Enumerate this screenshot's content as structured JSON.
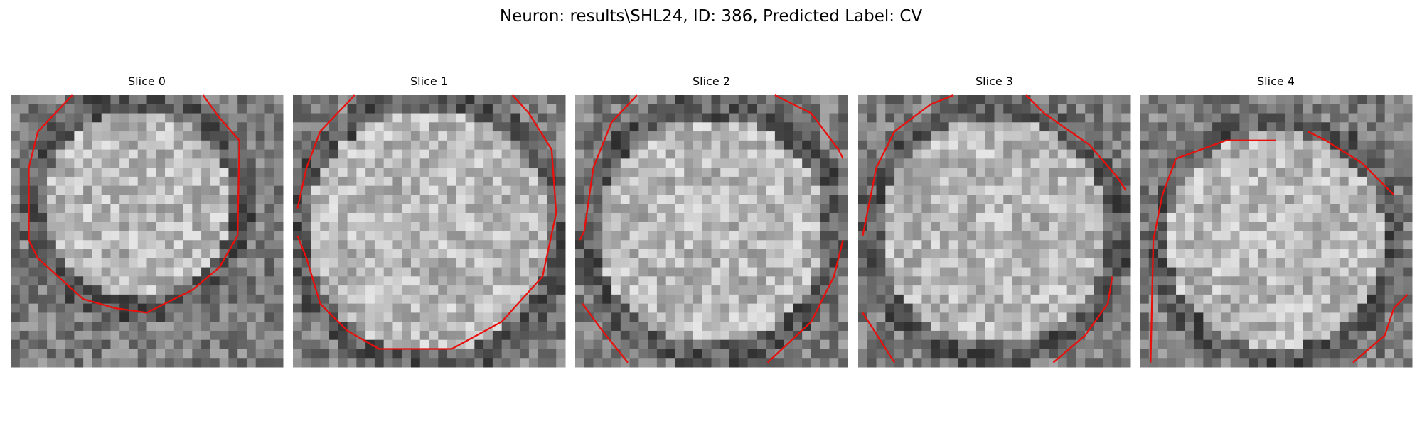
{
  "header": {
    "title": "Neuron: results\\SHL24, ID: 386, Predicted Label: CV"
  },
  "panels": [
    {
      "title": "Slice 0"
    },
    {
      "title": "Slice 1"
    },
    {
      "title": "Slice 2"
    },
    {
      "title": "Slice 3"
    },
    {
      "title": "Slice 4"
    }
  ]
}
